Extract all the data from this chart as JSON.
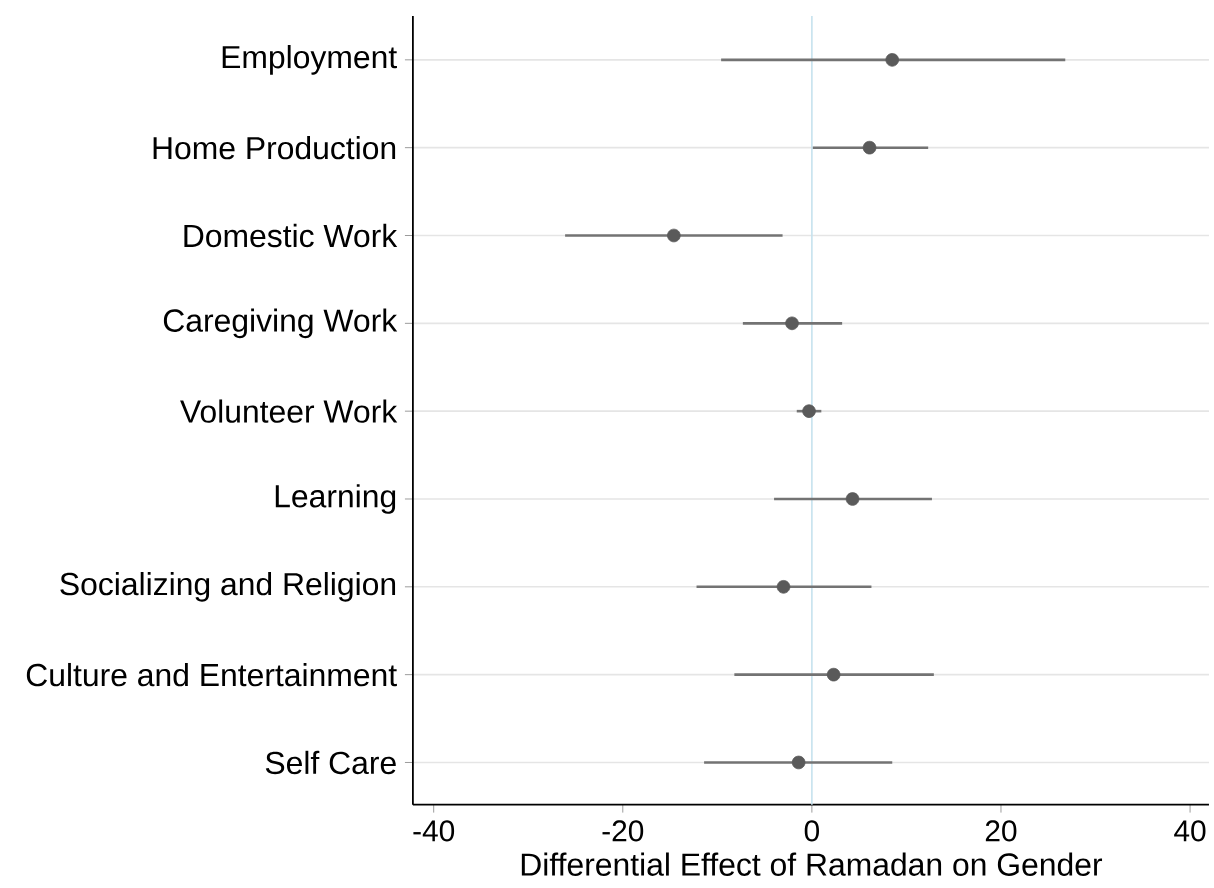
{
  "chart_data": {
    "type": "scatter",
    "orientation": "horizontal",
    "xlabel": "Differential Effect of Ramadan on Gender",
    "categories": [
      "Employment",
      "Home Production",
      "Domestic Work",
      "Caregiving Work",
      "Volunteer Work",
      "Learning",
      "Socializing and Religion",
      "Culture and Entertainment",
      "Self Care"
    ],
    "values": [
      8.5,
      6.1,
      -14.6,
      -2.1,
      -0.3,
      4.3,
      -3.0,
      2.3,
      -1.4
    ],
    "errors": [
      [
        -9.6,
        26.8
      ],
      [
        0.1,
        12.3
      ],
      [
        -26.1,
        -3.1
      ],
      [
        -7.3,
        3.2
      ],
      [
        -1.6,
        1.0
      ],
      [
        -4.0,
        12.7
      ],
      [
        -12.2,
        6.3
      ],
      [
        -8.2,
        12.9
      ],
      [
        -11.4,
        8.5
      ]
    ],
    "color": "#5a5a5a",
    "marker": "circle",
    "xlim": [
      -42.2,
      42
    ],
    "xticks": [
      -40,
      -20,
      0,
      20,
      40
    ],
    "grid": "y",
    "ref_lines": [
      {
        "axis": "x",
        "value": 0,
        "color": "#c6e2ee"
      }
    ]
  }
}
